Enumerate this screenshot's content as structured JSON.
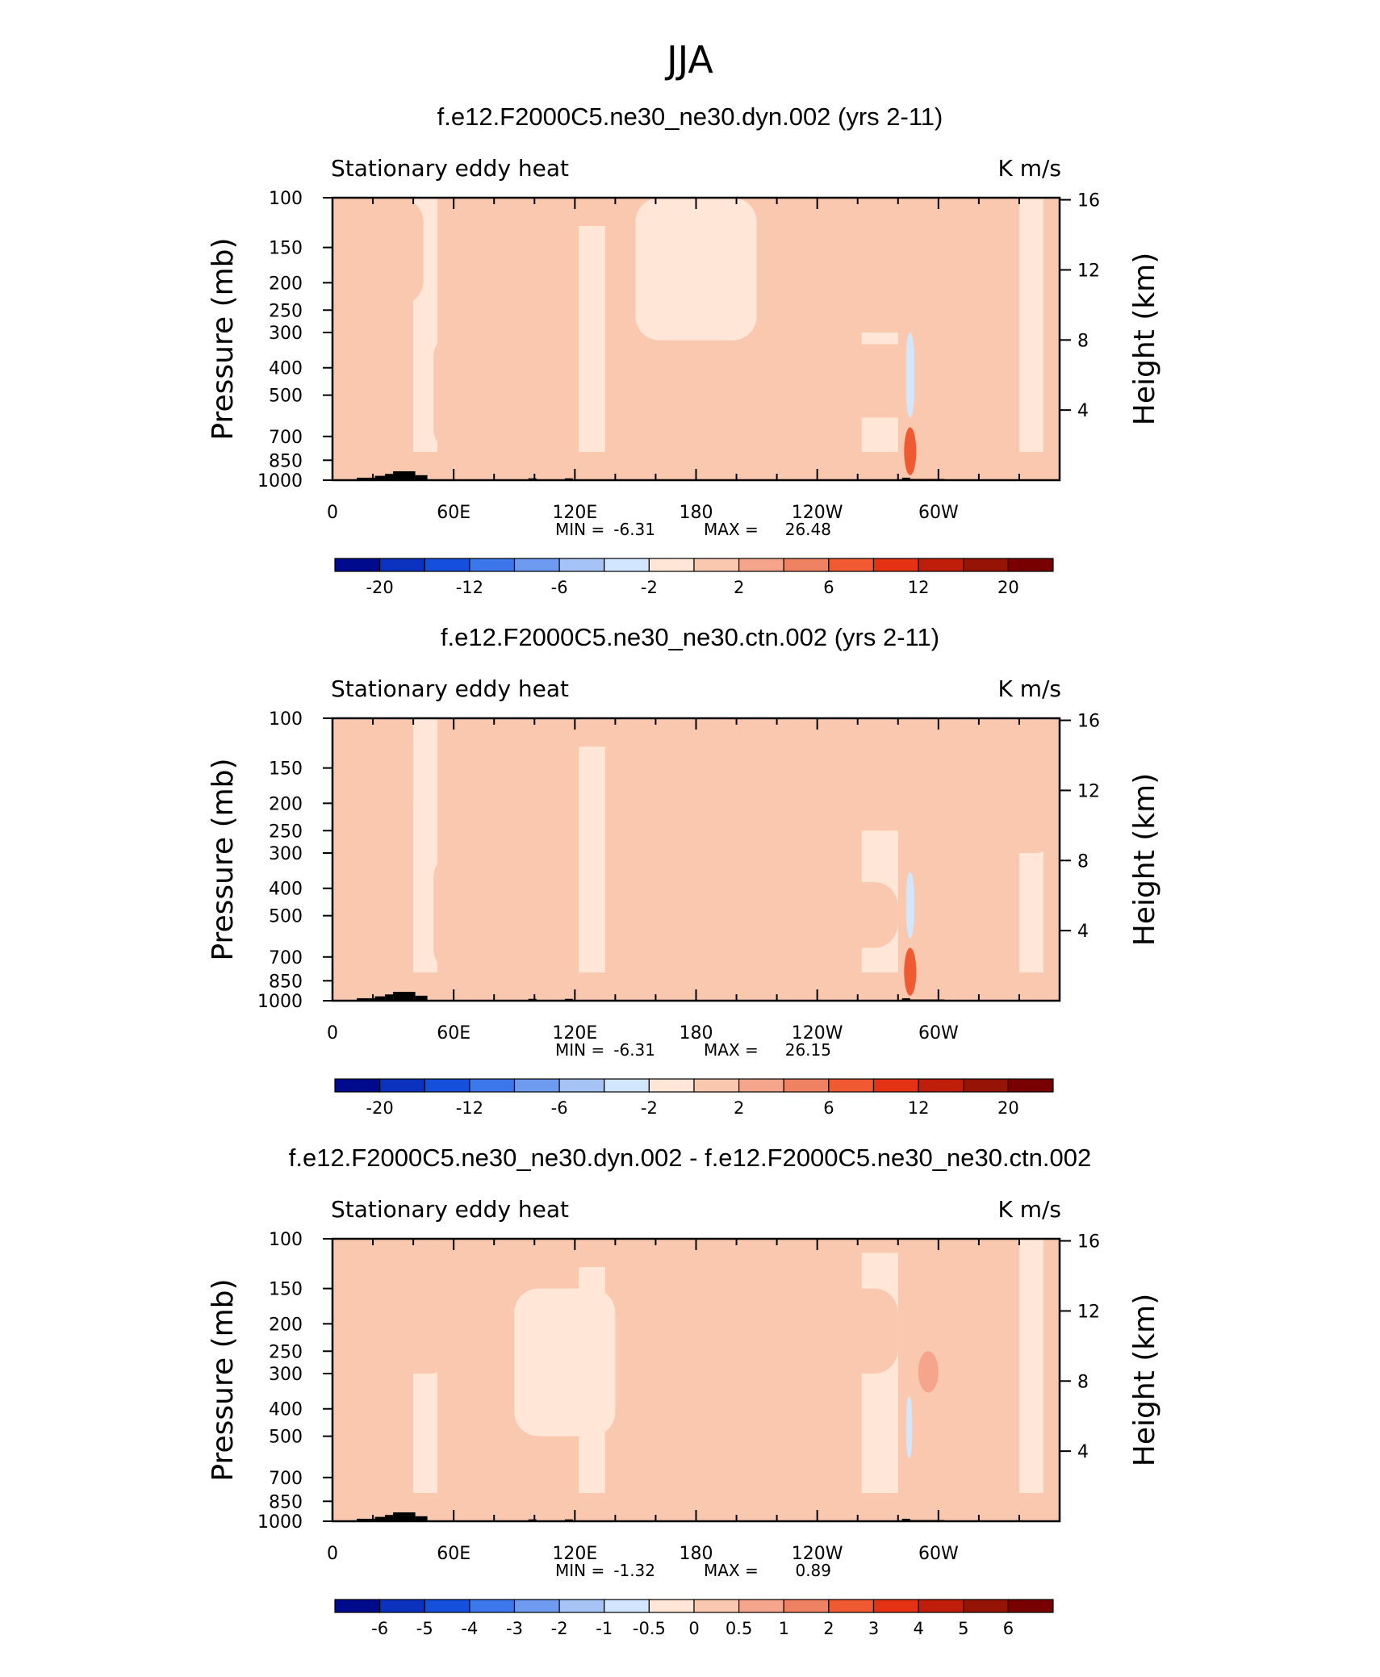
{
  "season": "JJA",
  "chart_data": [
    {
      "type": "heatmap",
      "title": "f.e12.F2000C5.ne30_ne30.dyn.002 (yrs 2-11)",
      "left_label": "Stationary eddy heat",
      "units_label": "K m/s",
      "xticks": [
        "0",
        "60E",
        "120E",
        "180",
        "120W",
        "60W"
      ],
      "xlim": [
        0,
        360
      ],
      "yticks_left": [
        "100",
        "150",
        "200",
        "250",
        "300",
        "400",
        "500",
        "700",
        "850",
        "1000"
      ],
      "ylabel": "Pressure (mb)",
      "yticks_right": [
        "16",
        "12",
        "8",
        "4"
      ],
      "ylabel_right": "Height (km)",
      "ylim": [
        1000,
        100
      ],
      "min_label": "MIN =",
      "min_value": "-6.31",
      "max_label": "MAX =",
      "max_value": "26.48",
      "levels": [
        -20,
        -16,
        -12,
        -8,
        -6,
        -4,
        -2,
        0,
        2,
        4,
        6,
        8,
        12,
        16,
        20
      ],
      "colorbar_labels": [
        "-20",
        "-12",
        "-6",
        "-2",
        "2",
        "6",
        "12",
        "20"
      ],
      "colorbar_label_slots": [
        1,
        3,
        5,
        7,
        9,
        11,
        13,
        15
      ],
      "colorbar_colors": [
        "#000a8c",
        "#0a32be",
        "#1450dc",
        "#3c78eb",
        "#6e9bf0",
        "#a5c3f5",
        "#d2e6ff",
        "#ffe6d7",
        "#fac8af",
        "#f5a58c",
        "#f08264",
        "#f05a32",
        "#e63214",
        "#be1e0a",
        "#961406",
        "#780000"
      ],
      "regions": [
        {
          "lon": [
            150,
            210
          ],
          "p": [
            100,
            320
          ],
          "level": -1
        },
        {
          "lon": [
            0,
            45
          ],
          "p": [
            100,
            240
          ],
          "level": 1
        },
        {
          "lon": [
            220,
            320
          ],
          "p": [
            100,
            300
          ],
          "level": 1
        },
        {
          "lon": [
            190,
            300
          ],
          "p": [
            330,
            600
          ],
          "level": 1
        },
        {
          "lon": [
            50,
            85
          ],
          "p": [
            300,
            800
          ],
          "level": 1
        },
        {
          "lon": [
            95,
            110
          ],
          "p": [
            200,
            900
          ],
          "level": 1
        },
        {
          "lon": [
            284,
            288
          ],
          "p": [
            300,
            600
          ],
          "level": -2
        },
        {
          "lon": [
            283,
            289
          ],
          "p": [
            650,
            960
          ],
          "level": 4
        }
      ]
    },
    {
      "type": "heatmap",
      "title": "f.e12.F2000C5.ne30_ne30.ctn.002 (yrs 2-11)",
      "left_label": "Stationary eddy heat",
      "units_label": "K m/s",
      "xticks": [
        "0",
        "60E",
        "120E",
        "180",
        "120W",
        "60W"
      ],
      "xlim": [
        0,
        360
      ],
      "yticks_left": [
        "100",
        "150",
        "200",
        "250",
        "300",
        "400",
        "500",
        "700",
        "850",
        "1000"
      ],
      "ylabel": "Pressure (mb)",
      "yticks_right": [
        "16",
        "12",
        "8",
        "4"
      ],
      "ylabel_right": "Height (km)",
      "ylim": [
        1000,
        100
      ],
      "min_label": "MIN =",
      "min_value": "-6.31",
      "max_label": "MAX =",
      "max_value": "26.15",
      "levels": [
        -20,
        -16,
        -12,
        -8,
        -6,
        -4,
        -2,
        0,
        2,
        4,
        6,
        8,
        12,
        16,
        20
      ],
      "colorbar_labels": [
        "-20",
        "-12",
        "-6",
        "-2",
        "2",
        "6",
        "12",
        "20"
      ],
      "colorbar_label_slots": [
        1,
        3,
        5,
        7,
        9,
        11,
        13,
        15
      ],
      "colorbar_colors": [
        "#000a8c",
        "#0a32be",
        "#1450dc",
        "#3c78eb",
        "#6e9bf0",
        "#a5c3f5",
        "#d2e6ff",
        "#ffe6d7",
        "#fac8af",
        "#f5a58c",
        "#f08264",
        "#f05a32",
        "#e63214",
        "#be1e0a",
        "#961406",
        "#780000"
      ],
      "regions": [
        {
          "lon": [
            0,
            40
          ],
          "p": [
            100,
            240
          ],
          "level": 1
        },
        {
          "lon": [
            180,
            300
          ],
          "p": [
            100,
            250
          ],
          "level": 1
        },
        {
          "lon": [
            300,
            360
          ],
          "p": [
            100,
            300
          ],
          "level": 1
        },
        {
          "lon": [
            200,
            280
          ],
          "p": [
            380,
            650
          ],
          "level": 1
        },
        {
          "lon": [
            50,
            80
          ],
          "p": [
            300,
            800
          ],
          "level": 1
        },
        {
          "lon": [
            284,
            288
          ],
          "p": [
            350,
            600
          ],
          "level": -2
        },
        {
          "lon": [
            283,
            289
          ],
          "p": [
            650,
            960
          ],
          "level": 4
        }
      ]
    },
    {
      "type": "heatmap",
      "title": "f.e12.F2000C5.ne30_ne30.dyn.002 - f.e12.F2000C5.ne30_ne30.ctn.002",
      "left_label": "Stationary eddy heat",
      "units_label": "K m/s",
      "xticks": [
        "0",
        "60E",
        "120E",
        "180",
        "120W",
        "60W"
      ],
      "xlim": [
        0,
        360
      ],
      "yticks_left": [
        "100",
        "150",
        "200",
        "250",
        "300",
        "400",
        "500",
        "700",
        "850",
        "1000"
      ],
      "ylabel": "Pressure (mb)",
      "yticks_right": [
        "16",
        "12",
        "8",
        "4"
      ],
      "ylabel_right": "Height (km)",
      "ylim": [
        1000,
        100
      ],
      "min_label": "MIN =",
      "min_value": "-1.32",
      "max_label": "MAX =",
      "max_value": "0.89",
      "levels": [
        -6,
        -5,
        -4,
        -3,
        -2,
        -1,
        -0.5,
        0,
        0.5,
        1,
        2,
        3,
        4,
        5,
        6
      ],
      "colorbar_labels": [
        "-6",
        "-5",
        "-4",
        "-3",
        "-2",
        "-1",
        "-0.5",
        "0",
        "0.5",
        "1",
        "2",
        "3",
        "4",
        "5",
        "6"
      ],
      "colorbar_label_slots": [
        1,
        2,
        3,
        4,
        5,
        6,
        7,
        8,
        9,
        10,
        11,
        12,
        13,
        14,
        15
      ],
      "colorbar_colors": [
        "#000a8c",
        "#0a32be",
        "#1450dc",
        "#3c78eb",
        "#6e9bf0",
        "#a5c3f5",
        "#d2e6ff",
        "#ffe6d7",
        "#fac8af",
        "#f5a58c",
        "#f08264",
        "#f05a32",
        "#e63214",
        "#be1e0a",
        "#961406",
        "#780000"
      ],
      "regions": [
        {
          "lon": [
            10,
            60
          ],
          "p": [
            100,
            300
          ],
          "level": 1
        },
        {
          "lon": [
            90,
            140
          ],
          "p": [
            150,
            500
          ],
          "level": -1
        },
        {
          "lon": [
            200,
            280
          ],
          "p": [
            150,
            300
          ],
          "level": 1
        },
        {
          "lon": [
            150,
            260
          ],
          "p": [
            400,
            800
          ],
          "level": 1
        },
        {
          "lon": [
            290,
            300
          ],
          "p": [
            250,
            350
          ],
          "level": 2
        },
        {
          "lon": [
            284,
            287
          ],
          "p": [
            360,
            600
          ],
          "level": -2
        }
      ]
    }
  ]
}
